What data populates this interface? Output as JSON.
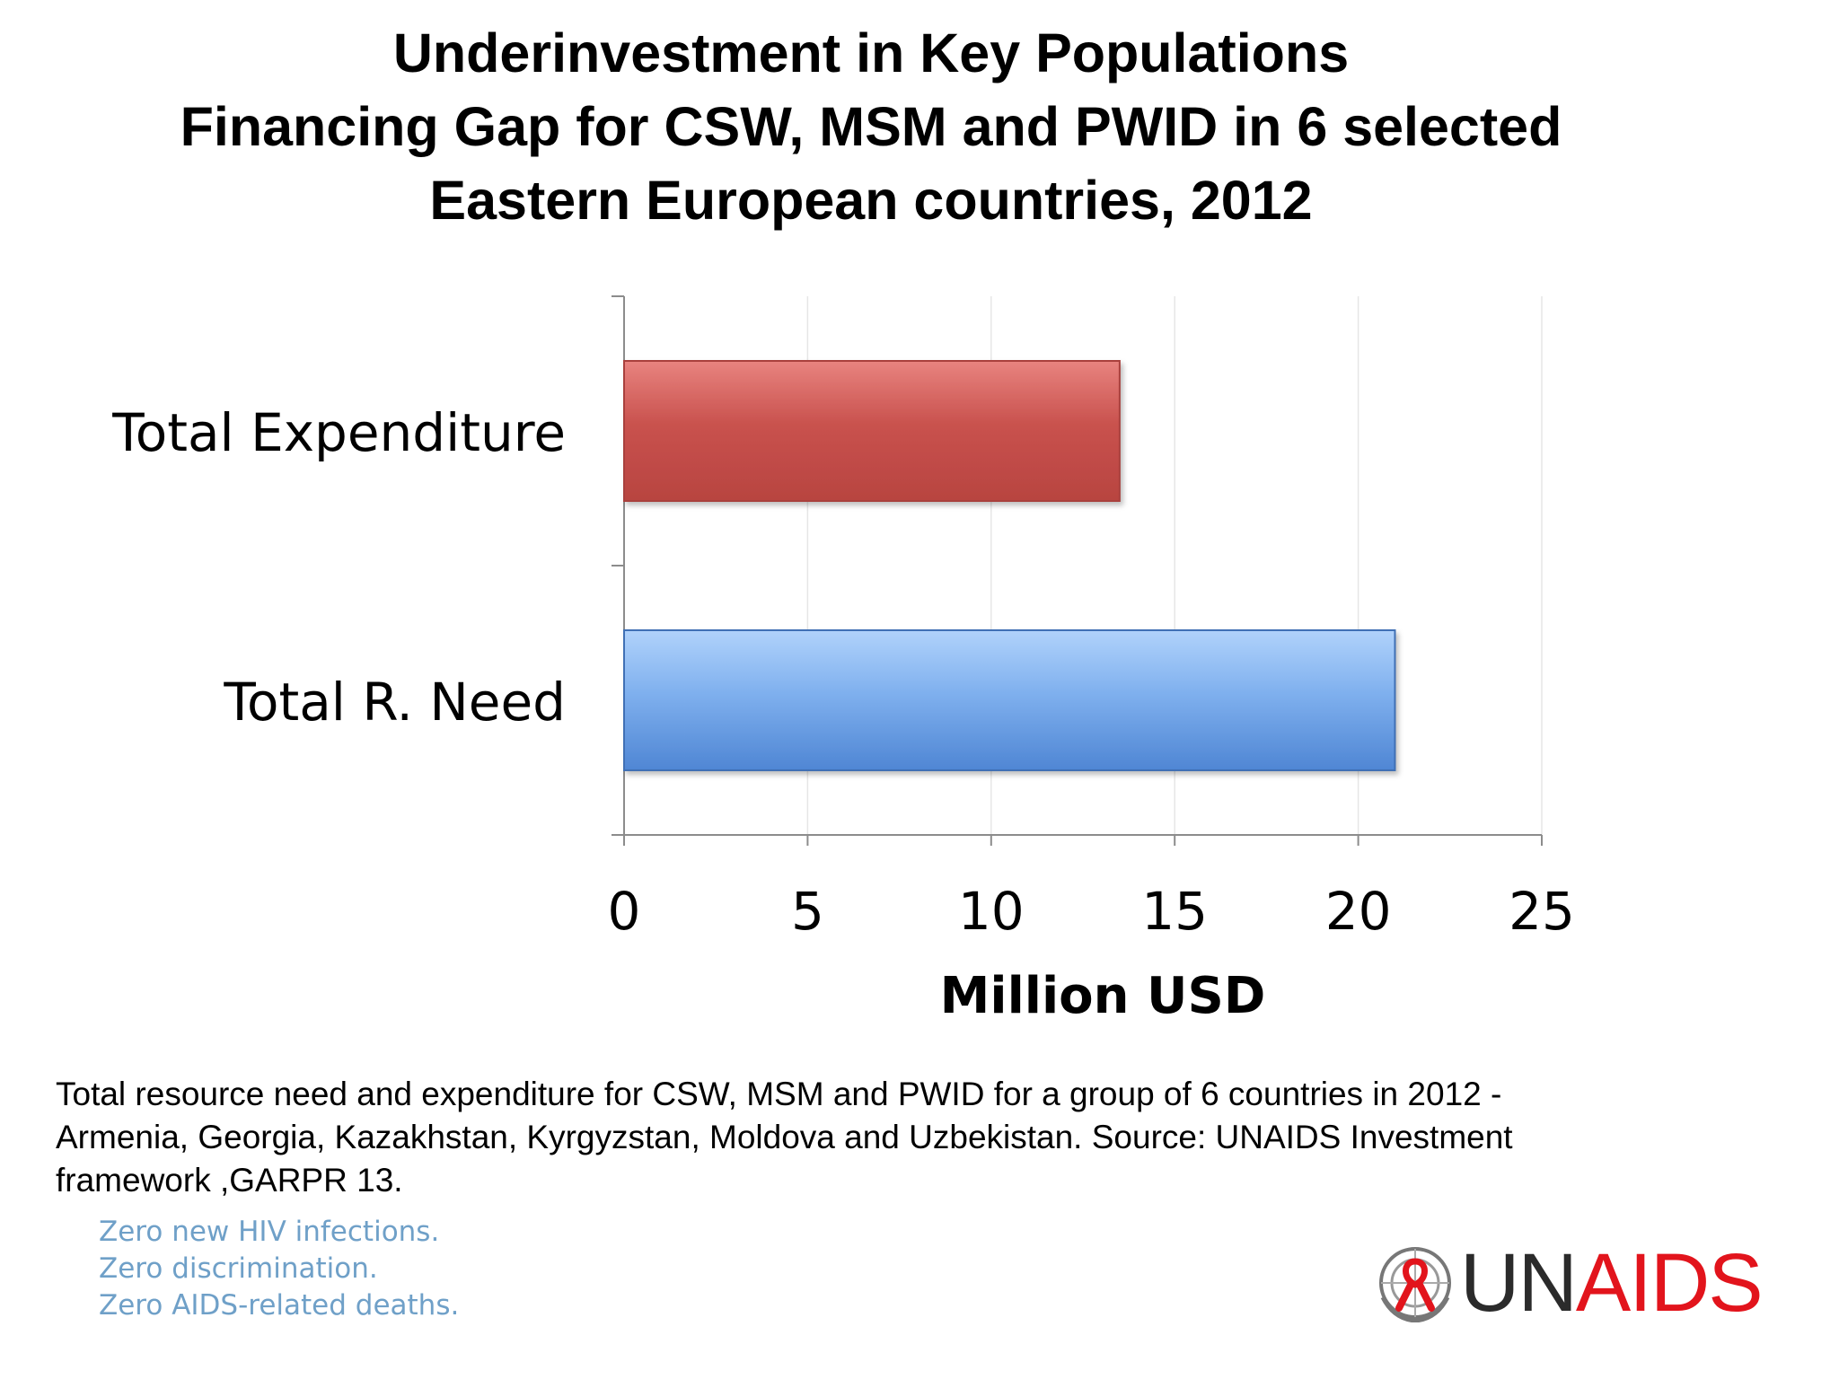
{
  "title_lines": [
    "Underinvestment in Key Populations",
    "Financing Gap for CSW, MSM and PWID in 6 selected",
    "Eastern European countries, 2012"
  ],
  "chart_data": {
    "type": "bar",
    "orientation": "horizontal",
    "categories": [
      "Total Expenditure",
      "Total R. Need"
    ],
    "values": [
      13.5,
      21
    ],
    "bar_colors": [
      "#c0504d",
      "#4f81bd"
    ],
    "xlabel": "Million USD",
    "xlim": [
      0,
      25
    ],
    "xticks": [
      "0",
      "5",
      "10",
      "15",
      "20",
      "25"
    ],
    "grid": "vertical"
  },
  "caption_lines": [
    "Total resource need and expenditure for CSW, MSM and PWID for a group of 6 countries  in 2012 -",
    "Armenia, Georgia, Kazakhstan, Kyrgyzstan, Moldova and Uzbekistan. Source: UNAIDS Investment",
    "framework ,GARPR 13."
  ],
  "slogans": [
    "Zero new HIV infections.",
    "Zero discrimination.",
    "Zero AIDS-related deaths."
  ],
  "logo": {
    "part1": "UN",
    "part2": "AIDS",
    "icon": "un-emblem-red-ribbon-icon",
    "color_un": "#2b2b2b",
    "color_aids": "#e2141c"
  }
}
